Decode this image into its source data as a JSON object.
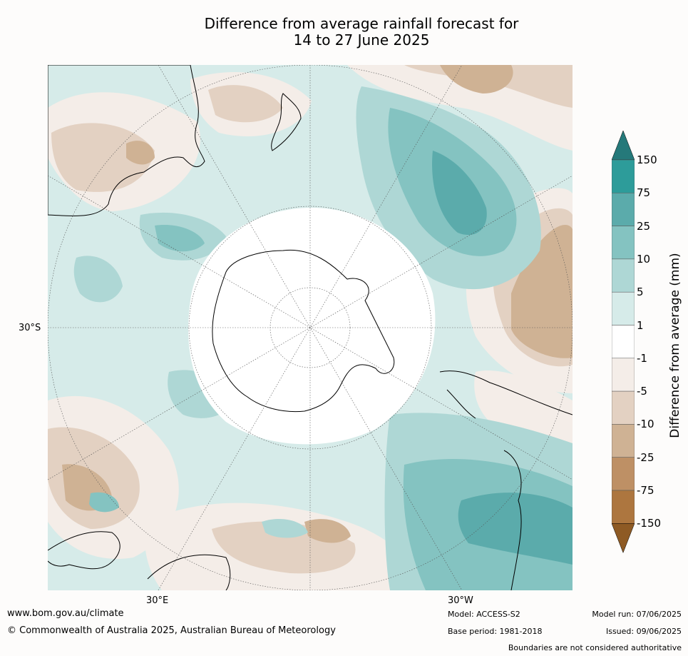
{
  "title_line1": "Difference from average rainfall forecast for",
  "title_line2": "14 to 27 June 2025",
  "map": {
    "projection": "south polar stereographic",
    "lat_label": "30°S",
    "lon_labels": [
      "30°E",
      "30°W"
    ],
    "land_color": "#ffffff",
    "coast_color": "#000000"
  },
  "colorbar": {
    "title": "Difference from average (mm)",
    "ticks": [
      "150",
      "75",
      "25",
      "10",
      "5",
      "1",
      "-1",
      "-5",
      "-10",
      "-25",
      "-75",
      "-150"
    ],
    "bins": [
      {
        "range": ">150",
        "color": "#25797a"
      },
      {
        "range": "75 to 150",
        "color": "#2d9c9a"
      },
      {
        "range": "25 to 75",
        "color": "#5babab"
      },
      {
        "range": "10 to 25",
        "color": "#84c3c1"
      },
      {
        "range": "5 to 10",
        "color": "#aed7d5"
      },
      {
        "range": "1 to 5",
        "color": "#d6ebe9"
      },
      {
        "range": "-1 to 1",
        "color": "#ffffff"
      },
      {
        "range": "-5 to -1",
        "color": "#f4ede8"
      },
      {
        "range": "-10 to -5",
        "color": "#e3d1c2"
      },
      {
        "range": "-25 to -10",
        "color": "#cfb294"
      },
      {
        "range": "-75 to -25",
        "color": "#be9065"
      },
      {
        "range": "-150 to -75",
        "color": "#ad763f"
      },
      {
        "range": "<-150",
        "color": "#8e5a24"
      }
    ]
  },
  "footer": {
    "url": "www.bom.gov.au/climate",
    "copyright": "© Commonwealth of Australia 2025, Australian Bureau of Meteorology",
    "model": "Model: ACCESS-S2",
    "base_period": "Base period: 1981-2018",
    "model_run": "Model run: 07/06/2025",
    "issued": "Issued: 09/06/2025",
    "disclaimer": "Boundaries are not considered authoritative"
  }
}
